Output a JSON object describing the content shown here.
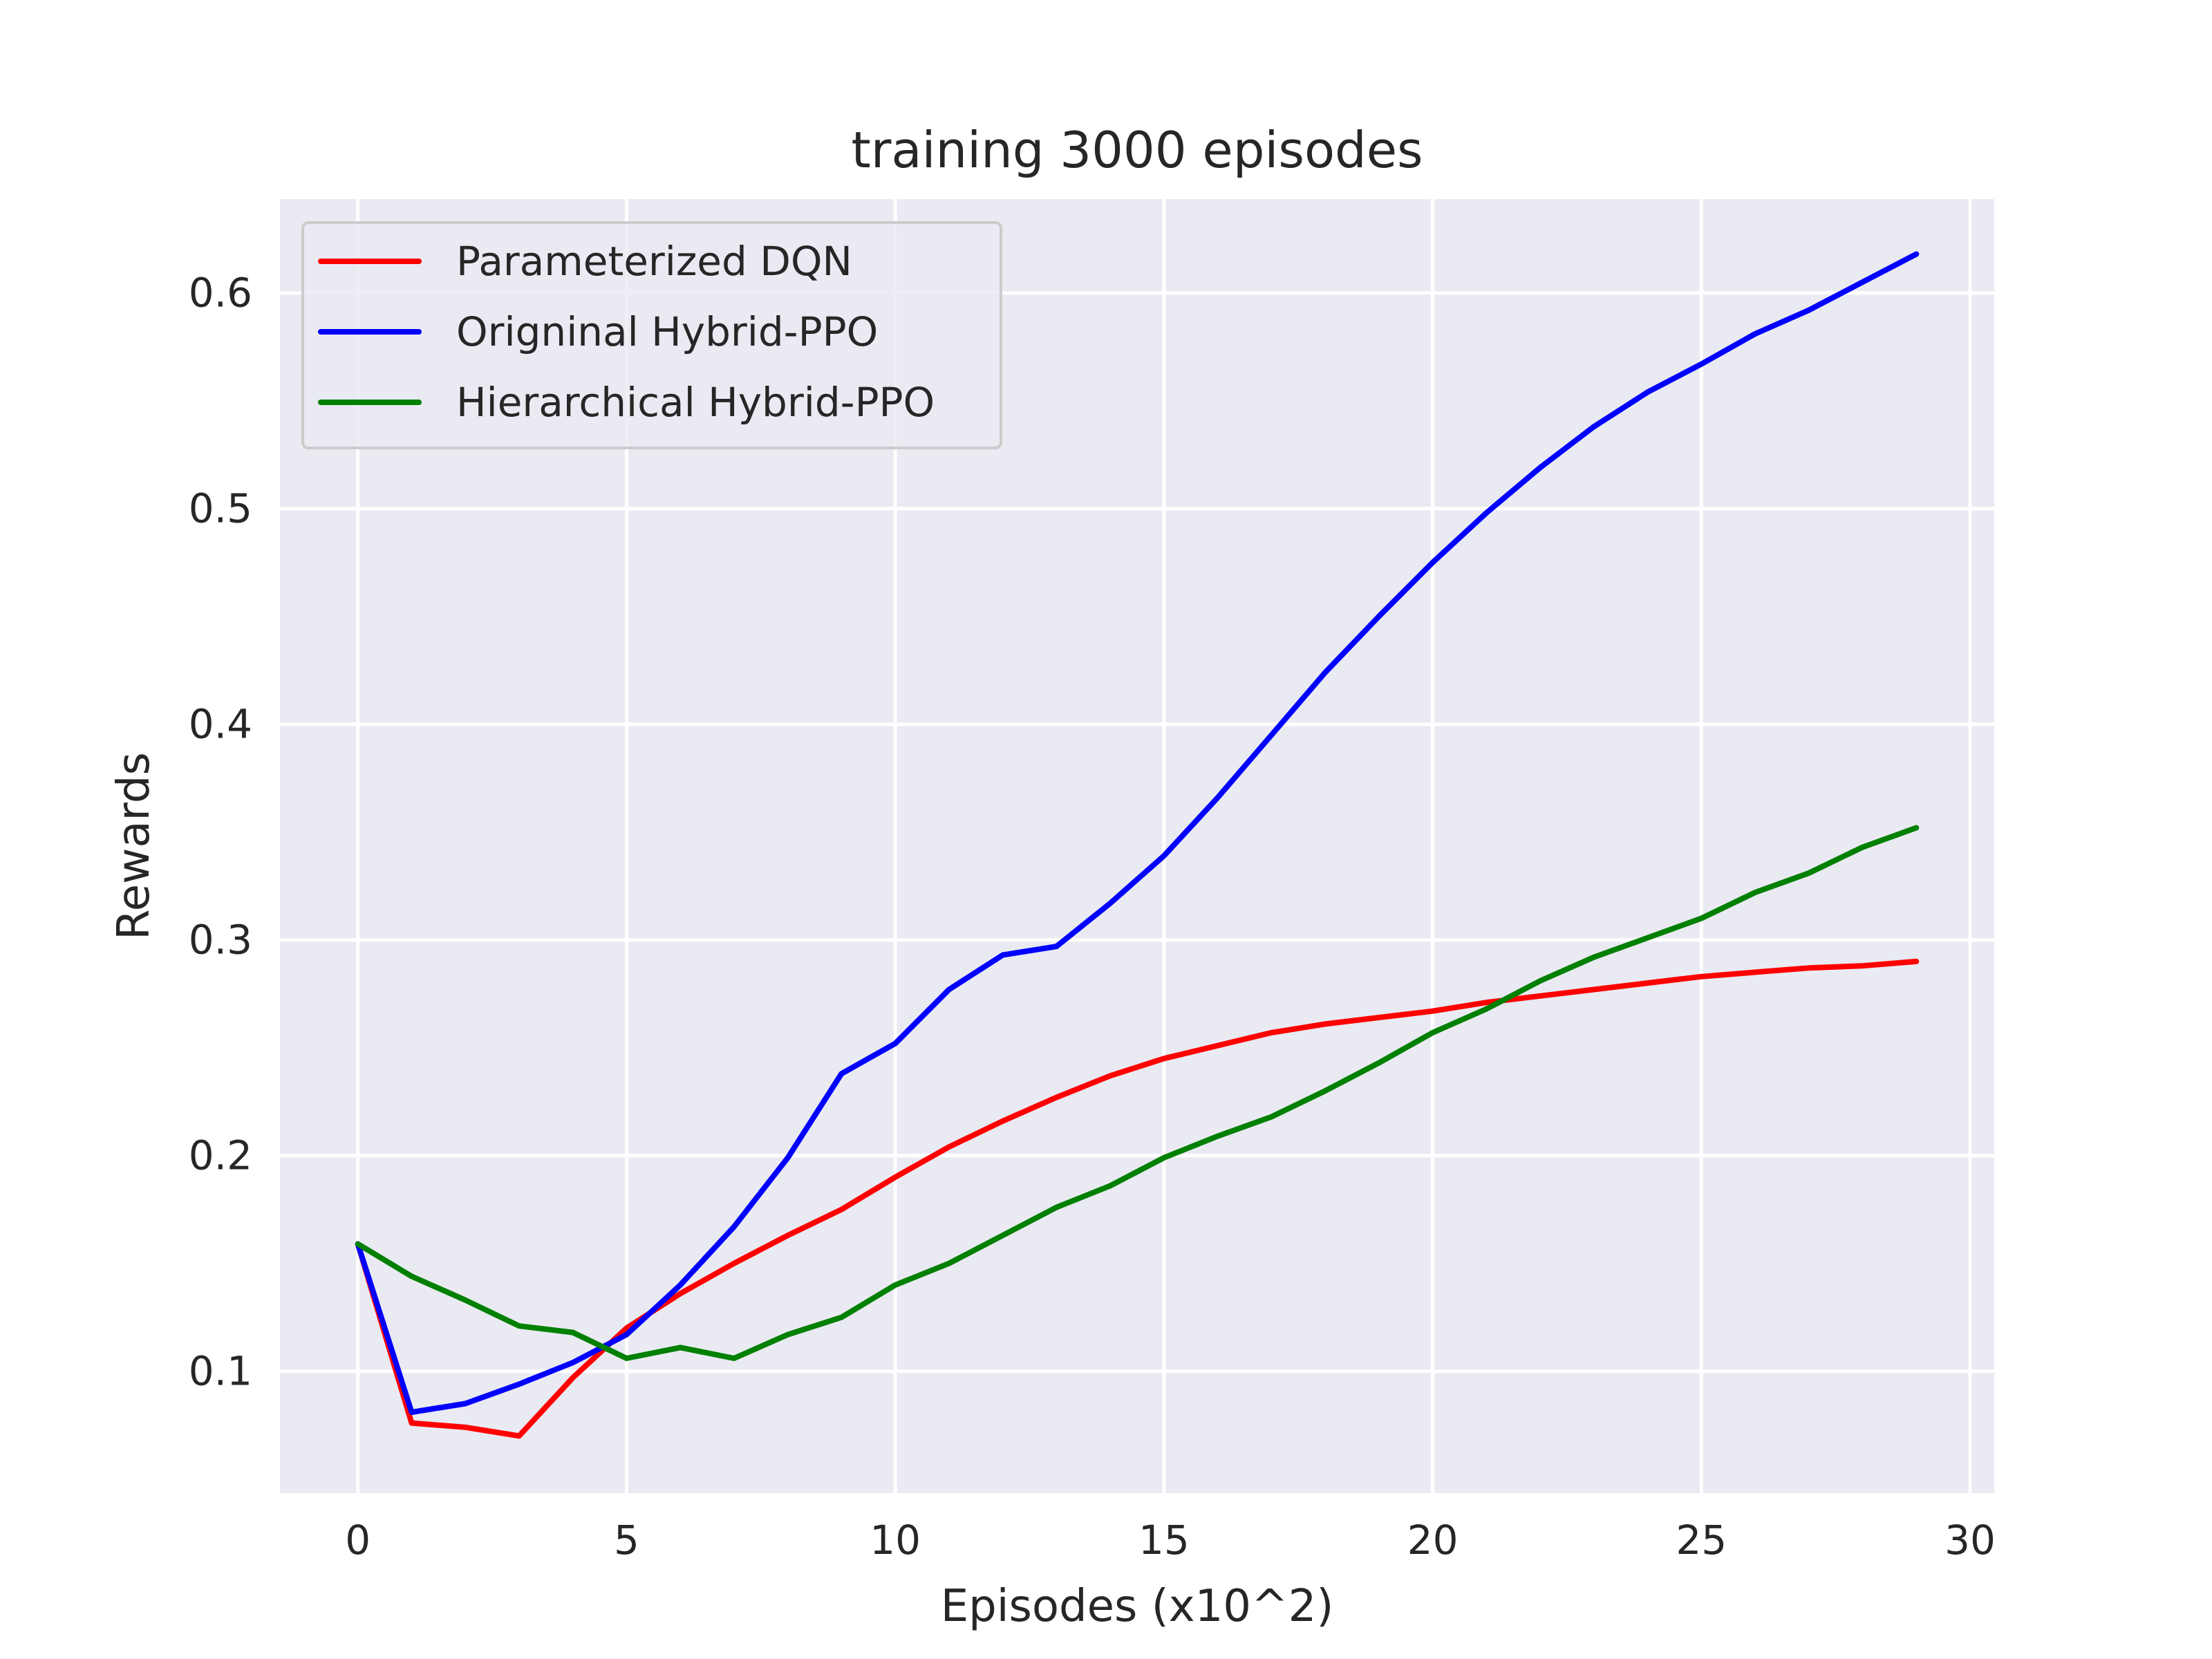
{
  "chart_data": {
    "type": "line",
    "title": "training 3000 episodes",
    "xlabel": "Episodes (x10^2)",
    "ylabel": "Rewards",
    "xlim": [
      -1.45,
      30.45
    ],
    "ylim": [
      0.0435,
      0.6435
    ],
    "x_ticks": [
      0,
      5,
      10,
      15,
      20,
      25,
      30
    ],
    "y_ticks": [
      0.1,
      0.2,
      0.3,
      0.4,
      0.5,
      0.6
    ],
    "x_tick_labels": [
      "0",
      "5",
      "10",
      "15",
      "20",
      "25",
      "30"
    ],
    "y_tick_labels": [
      "0.1",
      "0.2",
      "0.3",
      "0.4",
      "0.5",
      "0.6"
    ],
    "grid": true,
    "legend_position": "top-left",
    "x": [
      0,
      1,
      2,
      3,
      4,
      5,
      6,
      7,
      8,
      9,
      10,
      11,
      12,
      13,
      14,
      15,
      16,
      17,
      18,
      19,
      20,
      21,
      22,
      23,
      24,
      25,
      26,
      27,
      28,
      29
    ],
    "series": [
      {
        "name": "Parameterized DQN",
        "color": "#ff0000",
        "values": [
          0.159,
          0.076,
          0.074,
          0.07,
          0.097,
          0.12,
          0.136,
          0.15,
          0.163,
          0.175,
          0.19,
          0.204,
          0.216,
          0.227,
          0.237,
          0.245,
          0.251,
          0.257,
          0.261,
          0.264,
          0.267,
          0.271,
          0.274,
          0.277,
          0.28,
          0.283,
          0.285,
          0.287,
          0.288,
          0.29
        ]
      },
      {
        "name": "Origninal Hybrid-PPO",
        "color": "#0000ff",
        "values": [
          0.159,
          0.081,
          0.085,
          0.094,
          0.104,
          0.117,
          0.14,
          0.167,
          0.199,
          0.238,
          0.252,
          0.277,
          0.293,
          0.297,
          0.317,
          0.339,
          0.366,
          0.395,
          0.424,
          0.45,
          0.475,
          0.498,
          0.519,
          0.538,
          0.554,
          0.567,
          0.581,
          0.592,
          0.605,
          0.618
        ]
      },
      {
        "name": "Hierarchical Hybrid-PPO",
        "color": "#008000",
        "values": [
          0.159,
          0.144,
          0.133,
          0.121,
          0.118,
          0.106,
          0.111,
          0.106,
          0.117,
          0.125,
          0.14,
          0.15,
          0.163,
          0.176,
          0.186,
          0.199,
          0.209,
          0.218,
          0.23,
          0.243,
          0.257,
          0.268,
          0.281,
          0.292,
          0.301,
          0.31,
          0.322,
          0.331,
          0.343,
          0.352
        ]
      }
    ]
  }
}
